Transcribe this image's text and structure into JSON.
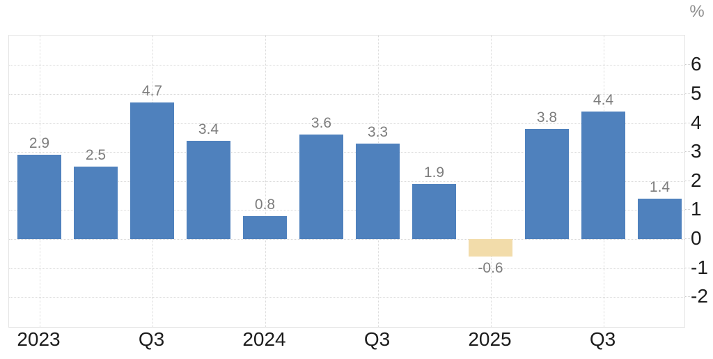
{
  "chart_data": {
    "type": "bar",
    "title": "",
    "xlabel": "",
    "ylabel": "%",
    "categories": [
      "2023-Q1",
      "2023-Q2",
      "2023-Q3",
      "2023-Q4",
      "2024-Q1",
      "2024-Q2",
      "2024-Q3",
      "2024-Q4",
      "2025-Q1",
      "2025-Q2",
      "2025-Q3",
      "2025-Q4"
    ],
    "values": [
      2.9,
      2.5,
      4.7,
      3.4,
      0.8,
      3.6,
      3.3,
      1.9,
      -0.6,
      3.8,
      4.4,
      1.4
    ],
    "bar_labels": [
      "2.9",
      "2.5",
      "4.7",
      "3.4",
      "0.8",
      "3.6",
      "3.3",
      "1.9",
      "-0.6",
      "3.8",
      "4.4",
      "1.4"
    ],
    "highlight_index": 8,
    "x_ticks": [
      {
        "label": "2023",
        "bar_index": 0
      },
      {
        "label": "Q3",
        "bar_index": 2
      },
      {
        "label": "2024",
        "bar_index": 4
      },
      {
        "label": "Q3",
        "bar_index": 6
      },
      {
        "label": "2025",
        "bar_index": 8
      },
      {
        "label": "Q3",
        "bar_index": 10
      }
    ],
    "y_ticks": [
      {
        "label": "6",
        "value": 6
      },
      {
        "label": "5",
        "value": 5
      },
      {
        "label": "4",
        "value": 4
      },
      {
        "label": "3",
        "value": 3
      },
      {
        "label": "2",
        "value": 2
      },
      {
        "label": "1",
        "value": 1
      },
      {
        "label": "0",
        "value": 0
      },
      {
        "label": "-1",
        "value": -1
      },
      {
        "label": "-2",
        "value": -2
      }
    ],
    "ylim": [
      -3.05,
      7.05
    ],
    "grid": true,
    "legend": false,
    "legend_position": "none",
    "colors": {
      "bar": "#4f81bd",
      "highlight_bar": "#f2dcaa",
      "value_label": "#7d7d7d",
      "axis_label": "#1c1c1c",
      "unit_label": "#8f8f8f",
      "grid": "#dadada",
      "border": "#e4e4e4",
      "background": "#ffffff"
    }
  }
}
